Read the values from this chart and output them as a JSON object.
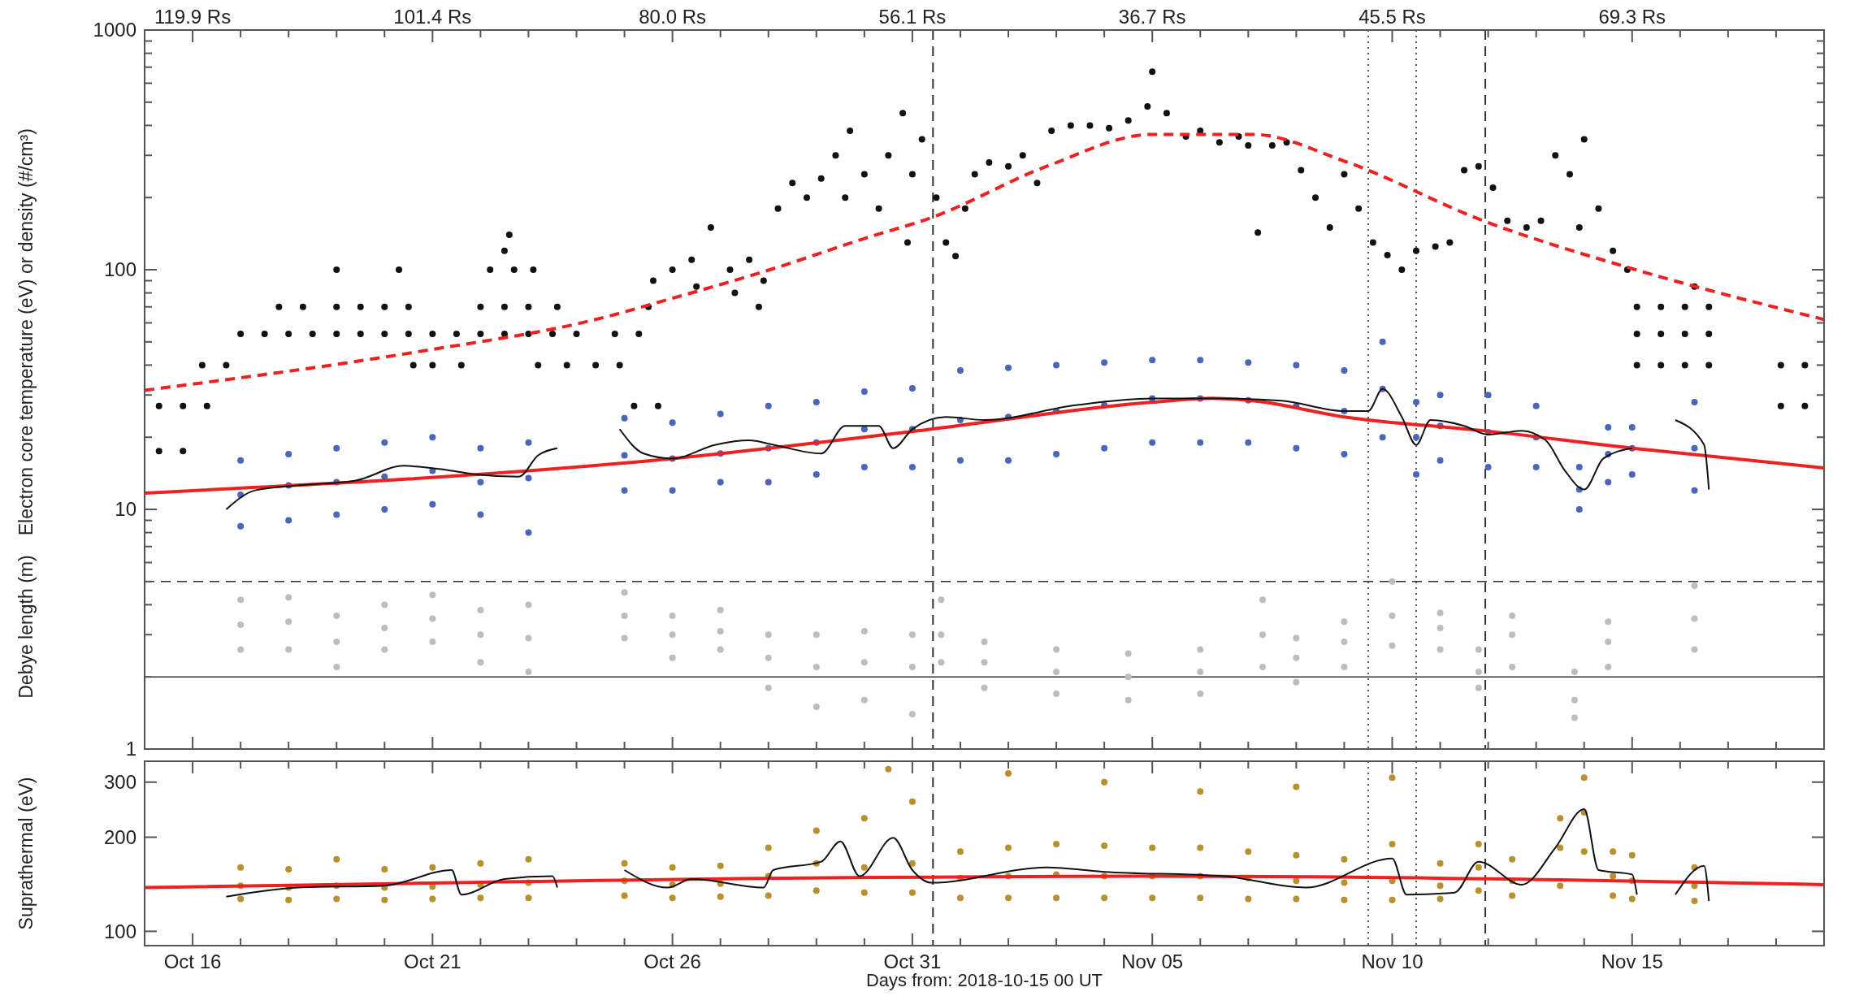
{
  "chart_data": [
    {
      "type": "scatter",
      "ylabel": "Electron core temperature (eV) or density (#/cm³)",
      "log": "y",
      "marker": "circle",
      "tick_labels": "y",
      "annotations": [
        "Debye length (m)",
        "119.9 Rs",
        "101.4 Rs",
        "80.0 Rs",
        "56.1 Rs",
        "36.7 Rs",
        "45.5 Rs",
        "69.3 Rs"
      ],
      "xlim": [
        "2018-10-15",
        "2018-11-19"
      ],
      "ylim": [
        1,
        1000
      ],
      "xticks": [
        {
          "value": "2018-10-16",
          "label": null
        },
        {
          "value": "2018-10-17",
          "label": null
        },
        {
          "value": "2018-10-18",
          "label": null
        },
        {
          "value": "2018-10-19",
          "label": null
        },
        {
          "value": "2018-10-20",
          "label": null
        },
        {
          "value": "2018-10-21",
          "label": null
        },
        {
          "value": "2018-10-22",
          "label": null
        },
        {
          "value": "2018-10-23",
          "label": null
        },
        {
          "value": "2018-10-24",
          "label": null
        },
        {
          "value": "2018-10-25",
          "label": null
        },
        {
          "value": "2018-10-26",
          "label": null
        },
        {
          "value": "2018-10-27",
          "label": null
        },
        {
          "value": "2018-10-28",
          "label": null
        },
        {
          "value": "2018-10-29",
          "label": null
        },
        {
          "value": "2018-10-30",
          "label": null
        },
        {
          "value": "2018-10-31",
          "label": null
        },
        {
          "value": "2018-11-01",
          "label": null
        },
        {
          "value": "2018-11-02",
          "label": null
        },
        {
          "value": "2018-11-03",
          "label": null
        },
        {
          "value": "2018-11-04",
          "label": null
        },
        {
          "value": "2018-11-05",
          "label": null
        },
        {
          "value": "2018-11-06",
          "label": null
        },
        {
          "value": "2018-11-07",
          "label": null
        },
        {
          "value": "2018-11-08",
          "label": null
        },
        {
          "value": "2018-11-09",
          "label": null
        },
        {
          "value": "2018-11-10",
          "label": null
        },
        {
          "value": "2018-11-11",
          "label": null
        },
        {
          "value": "2018-11-12",
          "label": null
        },
        {
          "value": "2018-11-13",
          "label": null
        },
        {
          "value": "2018-11-14",
          "label": null
        },
        {
          "value": "2018-11-15",
          "label": null
        },
        {
          "value": "2018-11-16",
          "label": null
        },
        {
          "value": "2018-11-17",
          "label": null
        },
        {
          "value": "2018-11-18",
          "label": null
        }
      ],
      "yticks": [
        1,
        {
          "value": 2,
          "label": null
        },
        {
          "value": 3,
          "label": null
        },
        {
          "value": 4,
          "label": null
        },
        {
          "value": 5,
          "label": null
        },
        {
          "value": 6,
          "label": null
        },
        {
          "value": 7,
          "label": null
        },
        {
          "value": 8,
          "label": null
        },
        {
          "value": 9,
          "label": null
        },
        10,
        {
          "value": 20,
          "label": null
        },
        {
          "value": 30,
          "label": null
        },
        {
          "value": 40,
          "label": null
        },
        {
          "value": 50,
          "label": null
        },
        {
          "value": 60,
          "label": null
        },
        {
          "value": 70,
          "label": null
        },
        {
          "value": 80,
          "label": null
        },
        {
          "value": 90,
          "label": null
        },
        100,
        {
          "value": 200,
          "label": null
        },
        {
          "value": 300,
          "label": null
        },
        {
          "value": 400,
          "label": null
        },
        {
          "value": 500,
          "label": null
        },
        {
          "value": 600,
          "label": null
        },
        {
          "value": 700,
          "label": null
        },
        {
          "value": 800,
          "label": null
        },
        {
          "value": 900,
          "label": null
        },
        1000
      ],
      "ref_lines": [
        {
          "axis": "y",
          "value": 5,
          "color": "#333333",
          "line_style": "dashed"
        },
        {
          "axis": "y",
          "value": 2,
          "color": "#333333",
          "line_style": "solid"
        },
        {
          "axis": "x",
          "value": "2018-10-31T10:19",
          "color": "#333333",
          "line_style": "dashed"
        },
        {
          "axis": "x",
          "value": "2018-11-11T22:34",
          "color": "#333333",
          "line_style": "dashed"
        },
        {
          "axis": "x",
          "value": "2018-11-09T12:00",
          "color": "#555555",
          "line_style": "dotted"
        },
        {
          "axis": "x",
          "value": "2018-11-10T12:00",
          "color": "#555555",
          "line_style": "dotted"
        }
      ],
      "series": [
        {
          "color": "#bdbdbd",
          "x": [
            "2018-10-17",
            "2018-10-17",
            "2018-10-17",
            "2018-10-18",
            "2018-10-18",
            "2018-10-18",
            "2018-10-19",
            "2018-10-19",
            "2018-10-19",
            "2018-10-20",
            "2018-10-20",
            "2018-10-20",
            "2018-10-21",
            "2018-10-21",
            "2018-10-21",
            "2018-10-22",
            "2018-10-22",
            "2018-10-22",
            "2018-10-23",
            "2018-10-23",
            "2018-10-23",
            "2018-10-25",
            "2018-10-25",
            "2018-10-25",
            "2018-10-26",
            "2018-10-26",
            "2018-10-26",
            "2018-10-27",
            "2018-10-27",
            "2018-10-27",
            "2018-10-28",
            "2018-10-28",
            "2018-10-28",
            "2018-10-29",
            "2018-10-29",
            "2018-10-29",
            "2018-10-30",
            "2018-10-30",
            "2018-10-30",
            "2018-10-31",
            "2018-10-31",
            "2018-10-31",
            "2018-10-31T14:24",
            "2018-10-31T14:24",
            "2018-10-31T14:24",
            "2018-11-01T12:00",
            "2018-11-01T12:00",
            "2018-11-01T12:00",
            "2018-11-03",
            "2018-11-03",
            "2018-11-03",
            "2018-11-04T12:00",
            "2018-11-04T12:00",
            "2018-11-04T12:00",
            "2018-11-06",
            "2018-11-06",
            "2018-11-06",
            "2018-11-07T07:12",
            "2018-11-07T07:12",
            "2018-11-07T07:12",
            "2018-11-08",
            "2018-11-08",
            "2018-11-08",
            "2018-11-09",
            "2018-11-09",
            "2018-11-09",
            "2018-11-10",
            "2018-11-10",
            "2018-11-10",
            "2018-11-11",
            "2018-11-11",
            "2018-11-11",
            "2018-11-11T19:12",
            "2018-11-11T19:12",
            "2018-11-11T19:12",
            "2018-11-12T12:00",
            "2018-11-12T12:00",
            "2018-11-12T12:00",
            "2018-11-13T19:12",
            "2018-11-13T19:12",
            "2018-11-13T19:12",
            "2018-11-14T12:00",
            "2018-11-14T12:00",
            "2018-11-14T12:00",
            "2018-11-16T07:12",
            "2018-11-16T07:12",
            "2018-11-16T07:12"
          ],
          "values": [
            3.3,
            4.2,
            2.6,
            3.4,
            4.3,
            2.6,
            2.8,
            3.6,
            2.2,
            3.2,
            4.0,
            2.6,
            3.5,
            4.4,
            2.8,
            3.0,
            3.8,
            2.3,
            2.9,
            4.0,
            2.1,
            3.6,
            4.5,
            2.9,
            3.0,
            3.6,
            2.4,
            3.1,
            3.8,
            2.6,
            2.4,
            3.0,
            1.8,
            2.2,
            3.0,
            1.5,
            2.3,
            3.1,
            1.6,
            2.2,
            3.0,
            1.4,
            3.0,
            4.2,
            2.3,
            2.3,
            2.8,
            1.8,
            2.1,
            2.6,
            1.7,
            2.0,
            2.5,
            1.6,
            2.1,
            2.6,
            1.7,
            3.0,
            4.2,
            2.2,
            2.4,
            2.9,
            1.9,
            2.8,
            3.4,
            2.2,
            3.6,
            5.0,
            2.7,
            3.2,
            3.7,
            2.6,
            2.1,
            2.6,
            1.8,
            3.0,
            3.6,
            2.2,
            1.6,
            2.1,
            1.35,
            2.8,
            3.4,
            2.2,
            3.5,
            4.8,
            2.6
          ]
        },
        {
          "color": "#4a66b8",
          "x": [
            "2018-10-17",
            "2018-10-17",
            "2018-10-17",
            "2018-10-18",
            "2018-10-18",
            "2018-10-18",
            "2018-10-19",
            "2018-10-19",
            "2018-10-19",
            "2018-10-20",
            "2018-10-20",
            "2018-10-20",
            "2018-10-21",
            "2018-10-21",
            "2018-10-21",
            "2018-10-22",
            "2018-10-22",
            "2018-10-22",
            "2018-10-23",
            "2018-10-23",
            "2018-10-23",
            "2018-10-25",
            "2018-10-25",
            "2018-10-25",
            "2018-10-26",
            "2018-10-26",
            "2018-10-26",
            "2018-10-27",
            "2018-10-27",
            "2018-10-27",
            "2018-10-28",
            "2018-10-28",
            "2018-10-28",
            "2018-10-29",
            "2018-10-29",
            "2018-10-29",
            "2018-10-30",
            "2018-10-30",
            "2018-10-30",
            "2018-10-31",
            "2018-10-31",
            "2018-10-31",
            "2018-11-01",
            "2018-11-01",
            "2018-11-01",
            "2018-11-02",
            "2018-11-02",
            "2018-11-02",
            "2018-11-03",
            "2018-11-03",
            "2018-11-03",
            "2018-11-04",
            "2018-11-04",
            "2018-11-04",
            "2018-11-05",
            "2018-11-05",
            "2018-11-05",
            "2018-11-06",
            "2018-11-06",
            "2018-11-06",
            "2018-11-07",
            "2018-11-07",
            "2018-11-07",
            "2018-11-08",
            "2018-11-08",
            "2018-11-08",
            "2018-11-09",
            "2018-11-09",
            "2018-11-09",
            "2018-11-09T19:12",
            "2018-11-09T19:12",
            "2018-11-09T19:12",
            "2018-11-10T12:00",
            "2018-11-10T12:00",
            "2018-11-10T12:00",
            "2018-11-11",
            "2018-11-11",
            "2018-11-11",
            "2018-11-12",
            "2018-11-12",
            "2018-11-12",
            "2018-11-13",
            "2018-11-13",
            "2018-11-13",
            "2018-11-13T21:36",
            "2018-11-13T21:36",
            "2018-11-13T21:36",
            "2018-11-14T12:00",
            "2018-11-14T12:00",
            "2018-11-14T12:00",
            "2018-11-15",
            "2018-11-15",
            "2018-11-15",
            "2018-11-16T07:12",
            "2018-11-16T07:12",
            "2018-11-16T07:12"
          ],
          "values": [
            11.5,
            16,
            8.5,
            12.6,
            17,
            9,
            13,
            18,
            9.5,
            13.7,
            19,
            10,
            14.5,
            20,
            10.5,
            13,
            18,
            9.5,
            13.5,
            19,
            8,
            16.8,
            24,
            12,
            16.3,
            23,
            12,
            17.1,
            25,
            13,
            18,
            27,
            13,
            19,
            28,
            14,
            21.6,
            31,
            15,
            21.6,
            32,
            15,
            23.6,
            38,
            16,
            24.3,
            39,
            16,
            25.7,
            40,
            17,
            27.2,
            41,
            18,
            29,
            42,
            19,
            29,
            42,
            19,
            28.5,
            41,
            19,
            27,
            40,
            18,
            25.7,
            38,
            17,
            31.8,
            50,
            20,
            20,
            28,
            14,
            22.3,
            30,
            16,
            21,
            30,
            15,
            20,
            27,
            15,
            12.1,
            15,
            10,
            17,
            22,
            13,
            18,
            22,
            14,
            18,
            28,
            12
          ]
        },
        {
          "color": "#111111",
          "x": [
            "2018-10-15T07:12",
            "2018-10-15T19:12",
            "2018-10-16T07:12",
            "2018-10-15T07:12",
            "2018-10-15T19:12",
            "2018-10-16T04:48",
            "2018-10-16T16:48",
            "2018-10-17",
            "2018-10-17T12:00",
            "2018-10-18",
            "2018-10-18T12:00",
            "2018-10-19",
            "2018-10-19T12:00",
            "2018-10-20",
            "2018-10-20T12:00",
            "2018-10-21",
            "2018-10-21T12:00",
            "2018-10-22",
            "2018-10-22T12:00",
            "2018-10-23",
            "2018-10-23T12:00",
            "2018-10-24",
            "2018-10-17T19:12",
            "2018-10-18T07:12",
            "2018-10-19",
            "2018-10-19T12:00",
            "2018-10-20",
            "2018-10-20T12:00",
            "2018-10-22",
            "2018-10-22T12:00",
            "2018-10-23",
            "2018-10-23T14:24",
            "2018-10-19",
            "2018-10-20T07:12",
            "2018-10-22T04:48",
            "2018-10-22T16:48",
            "2018-10-23T02:24",
            "2018-10-22T14:24",
            "2018-10-22T12:00",
            "2018-10-20T14:24",
            "2018-10-21",
            "2018-10-21T14:24",
            "2018-10-23T04:48",
            "2018-10-23T19:12",
            "2018-10-24T09:36",
            "2018-10-24T21:36",
            "2018-10-25T04:48",
            "2018-10-25T16:48",
            "2018-10-24T19:12",
            "2018-10-25T07:12",
            "2018-10-25T12:00",
            "2018-10-25T14:24",
            "2018-10-26",
            "2018-10-26T09:36",
            "2018-10-26T19:12",
            "2018-10-27T04:48",
            "2018-10-27T14:24",
            "2018-10-27T21:36",
            "2018-10-26T12:00",
            "2018-10-27T07:12",
            "2018-10-27T19:12",
            "2018-10-28T04:48",
            "2018-10-28T12:00",
            "2018-10-28T19:12",
            "2018-10-29T02:24",
            "2018-10-29T09:36",
            "2018-10-29T16:48",
            "2018-10-29T14:24",
            "2018-10-30",
            "2018-10-30T07:12",
            "2018-10-30T12:00",
            "2018-10-30T19:12",
            "2018-10-31",
            "2018-10-31T04:48",
            "2018-10-30T21:36",
            "2018-10-31T12:00",
            "2018-10-31T16:48",
            "2018-10-31T21:36",
            "2018-11-01T02:24",
            "2018-11-01T07:12",
            "2018-11-01T14:24",
            "2018-11-02",
            "2018-11-02T07:12",
            "2018-11-02T14:24",
            "2018-11-02T21:36",
            "2018-11-03T07:12",
            "2018-11-03T16:48",
            "2018-11-04T02:24",
            "2018-11-04T12:00",
            "2018-11-04T21:36",
            "2018-11-05",
            "2018-11-05T07:12",
            "2018-11-05T16:48",
            "2018-11-06",
            "2018-11-06T09:36",
            "2018-11-06T19:12",
            "2018-11-07",
            "2018-11-07T04:48",
            "2018-11-07T12:00",
            "2018-11-07T19:12",
            "2018-11-08T02:24",
            "2018-11-08T09:36",
            "2018-11-08T16:48",
            "2018-11-09",
            "2018-11-09T07:12",
            "2018-11-09T14:24",
            "2018-11-09T21:36",
            "2018-11-10T04:48",
            "2018-11-10T12:00",
            "2018-11-10T21:36",
            "2018-11-11T04:48",
            "2018-11-11T12:00",
            "2018-11-11T19:12",
            "2018-11-12T02:24",
            "2018-11-12T09:36",
            "2018-11-12T19:12",
            "2018-11-13T02:24",
            "2018-11-13T09:36",
            "2018-11-13T16:48",
            "2018-11-14",
            "2018-11-13T21:36",
            "2018-11-14T07:12",
            "2018-11-14T14:24",
            "2018-11-14T21:36",
            "2018-11-15T02:24",
            "2018-11-15T14:24",
            "2018-11-16T02:24",
            "2018-11-16T14:24",
            "2018-11-15T02:24",
            "2018-11-15T14:24",
            "2018-11-16T02:24",
            "2018-11-16T14:24",
            "2018-11-15T02:24",
            "2018-11-15T14:24",
            "2018-11-16T02:24",
            "2018-11-16T14:24",
            "2018-11-16T07:12",
            "2018-11-18T02:24",
            "2018-11-18T14:24",
            "2018-11-18T02:24",
            "2018-11-18T14:24"
          ],
          "values": [
            27,
            27,
            27,
            17.5,
            17.5,
            40,
            40,
            54,
            54,
            54,
            54,
            54,
            54,
            54,
            54,
            54,
            54,
            54,
            54,
            54,
            54,
            54,
            70,
            70,
            70,
            70,
            70,
            70,
            70,
            70,
            70,
            70,
            100,
            100,
            100,
            100,
            100,
            140,
            120,
            40,
            40,
            40,
            40,
            40,
            40,
            40,
            27,
            27,
            54,
            54,
            70,
            90,
            100,
            110,
            150,
            100,
            110,
            90,
            85,
            80,
            70,
            180,
            230,
            200,
            240,
            300,
            380,
            200,
            250,
            180,
            300,
            450,
            250,
            350,
            130,
            200,
            130,
            114,
            180,
            250,
            280,
            270,
            300,
            230,
            380,
            400,
            400,
            390,
            420,
            480,
            670,
            450,
            360,
            380,
            340,
            360,
            330,
            143,
            330,
            340,
            260,
            200,
            150,
            250,
            180,
            130,
            115,
            100,
            120,
            125,
            130,
            260,
            270,
            220,
            160,
            150,
            160,
            300,
            250,
            350,
            150,
            180,
            120,
            100,
            70,
            70,
            70,
            70,
            54,
            54,
            54,
            54,
            40,
            40,
            40,
            40,
            85,
            40,
            40,
            27,
            27
          ]
        },
        {
          "type": "line",
          "color": "#ee2020",
          "line_style": "dashed",
          "marker": "none",
          "x": [
            "2018-10-15",
            "2018-10-20T16:48",
            "2018-10-24T09:36",
            "2018-10-26",
            "2018-10-28T02:24",
            "2018-10-30",
            "2018-10-31T09:36",
            "2018-11-02T19:12",
            "2018-11-05",
            "2018-11-07T02:24",
            "2018-11-09",
            "2018-11-11T21:36",
            "2018-11-15",
            "2018-11-19"
          ],
          "values": [
            31.4,
            45.5,
            62,
            76,
            101,
            135,
            165,
            270,
            367,
            367,
            284,
            160,
            101,
            62
          ]
        },
        {
          "type": "line",
          "color": "#ee2020",
          "line_style": "solid",
          "marker": "none",
          "x": [
            "2018-10-15",
            "2018-10-26",
            "2018-10-31T07:12",
            "2018-11-05",
            "2018-11-06T06:00",
            "2018-11-07T02:24",
            "2018-11-09",
            "2018-11-11T21:36",
            "2018-11-15",
            "2018-11-19"
          ],
          "values": [
            11.7,
            16.3,
            21.5,
            28,
            29.1,
            28.4,
            24.3,
            21.3,
            18,
            14.9
          ]
        },
        {
          "type": "line",
          "color": "#111111",
          "line_style": "solid",
          "marker": "none",
          "x": [
            "2018-10-16T16:48",
            "2018-10-17T07:12",
            "2018-10-18T04:48",
            "2018-10-19T09:36",
            "2018-10-20T09:36",
            "2018-10-20T19:12",
            "2018-10-21T09:36",
            "2018-10-21T21:36",
            "2018-10-22T19:12",
            "2018-10-23T04:48",
            "2018-10-23T14:24",
            "2018-10-24T04:48",
            "2018-10-24T21:36",
            "2018-10-25T09:36",
            "2018-10-26",
            "2018-10-26T21:36",
            "2018-10-27T14:24",
            "2018-10-28T02:24",
            "2018-10-29T02:24",
            "2018-10-29T14:24",
            "2018-10-30T07:12",
            "2018-10-30T14:24",
            "2018-10-31",
            "2018-10-31T16:48",
            "2018-11-01T12:00",
            "2018-11-03T09:36",
            "2018-11-05",
            "2018-11-06T12:00",
            "2018-11-07T16:48",
            "2018-11-09",
            "2018-11-09T12:00",
            "2018-11-09T19:12",
            "2018-11-10T04:48",
            "2018-11-10T12:00",
            "2018-11-10T19:12",
            "2018-11-11T12:00",
            "2018-11-12",
            "2018-11-12T16:48",
            "2018-11-13T04:48",
            "2018-11-13T14:24",
            "2018-11-14",
            "2018-11-14T09:36",
            "2018-11-15",
            "2018-11-15T12:00",
            "2018-11-15T21:36",
            "2018-11-16T12:00",
            "2018-11-16T14:24"
          ],
          "values": [
            10,
            12,
            12.6,
            13.2,
            15.2,
            15,
            14.5,
            14,
            13.7,
            16.8,
            18,
            null,
            21.6,
            17.1,
            16.3,
            18.6,
            19.4,
            18.6,
            17.1,
            22.3,
            22.3,
            18,
            21.6,
            24.3,
            23.6,
            27.2,
            29,
            29,
            28.4,
            25.7,
            25.7,
            31.8,
            24.3,
            18.6,
            23.6,
            22.3,
            20.5,
            21.3,
            19.4,
            14.5,
            12.1,
            16.3,
            18,
            null,
            23.6,
            18.6,
            12.1
          ]
        }
      ]
    },
    {
      "type": "scatter",
      "ylabel": "Suprathermal (eV)",
      "xlabel": "Days from: 2018-10-15 00 UT",
      "log": "y",
      "marker": "circle",
      "xlim": [
        "2018-10-15",
        "2018-11-19"
      ],
      "ylim": [
        90,
        350
      ],
      "xticks": [
        {
          "value": "2018-10-16",
          "label": "Oct 16"
        },
        {
          "value": "2018-10-17",
          "label": null
        },
        {
          "value": "2018-10-18",
          "label": null
        },
        {
          "value": "2018-10-19",
          "label": null
        },
        {
          "value": "2018-10-20",
          "label": null
        },
        {
          "value": "2018-10-21",
          "label": "Oct 21"
        },
        {
          "value": "2018-10-22",
          "label": null
        },
        {
          "value": "2018-10-23",
          "label": null
        },
        {
          "value": "2018-10-24",
          "label": null
        },
        {
          "value": "2018-10-25",
          "label": null
        },
        {
          "value": "2018-10-26",
          "label": "Oct 26"
        },
        {
          "value": "2018-10-27",
          "label": null
        },
        {
          "value": "2018-10-28",
          "label": null
        },
        {
          "value": "2018-10-29",
          "label": null
        },
        {
          "value": "2018-10-30",
          "label": null
        },
        {
          "value": "2018-10-31",
          "label": "Oct 31"
        },
        {
          "value": "2018-11-01",
          "label": null
        },
        {
          "value": "2018-11-02",
          "label": null
        },
        {
          "value": "2018-11-03",
          "label": null
        },
        {
          "value": "2018-11-04",
          "label": null
        },
        {
          "value": "2018-11-05",
          "label": "Nov 05"
        },
        {
          "value": "2018-11-06",
          "label": null
        },
        {
          "value": "2018-11-07",
          "label": null
        },
        {
          "value": "2018-11-08",
          "label": null
        },
        {
          "value": "2018-11-09",
          "label": null
        },
        {
          "value": "2018-11-10",
          "label": "Nov 10"
        },
        {
          "value": "2018-11-11",
          "label": null
        },
        {
          "value": "2018-11-12",
          "label": null
        },
        {
          "value": "2018-11-13",
          "label": null
        },
        {
          "value": "2018-11-14",
          "label": null
        },
        {
          "value": "2018-11-15",
          "label": "Nov 15"
        },
        {
          "value": "2018-11-16",
          "label": null
        },
        {
          "value": "2018-11-17",
          "label": null
        },
        {
          "value": "2018-11-18",
          "label": null
        }
      ],
      "yticks": [
        100,
        200,
        300
      ],
      "ref_lines": [
        {
          "axis": "x",
          "value": "2018-10-31T10:19",
          "color": "#333333",
          "line_style": "dashed"
        },
        {
          "axis": "x",
          "value": "2018-11-11T22:34",
          "color": "#333333",
          "line_style": "dashed"
        },
        {
          "axis": "x",
          "value": "2018-11-09T12:00",
          "color": "#555555",
          "line_style": "dotted"
        },
        {
          "axis": "x",
          "value": "2018-11-10T12:00",
          "color": "#555555",
          "line_style": "dotted"
        }
      ],
      "series": [
        {
          "color": "#b8902e",
          "x": [
            "2018-10-17",
            "2018-10-17",
            "2018-10-17",
            "2018-10-18",
            "2018-10-18",
            "2018-10-18",
            "2018-10-19",
            "2018-10-19",
            "2018-10-19",
            "2018-10-20",
            "2018-10-20",
            "2018-10-20",
            "2018-10-21",
            "2018-10-21",
            "2018-10-21",
            "2018-10-22",
            "2018-10-22",
            "2018-10-22",
            "2018-10-23",
            "2018-10-23",
            "2018-10-23",
            "2018-10-25",
            "2018-10-25",
            "2018-10-25",
            "2018-10-26",
            "2018-10-26",
            "2018-10-26",
            "2018-10-27",
            "2018-10-27",
            "2018-10-27",
            "2018-10-28",
            "2018-10-28",
            "2018-10-28",
            "2018-10-29",
            "2018-10-29",
            "2018-10-29",
            "2018-10-30",
            "2018-10-30",
            "2018-10-30",
            "2018-10-31",
            "2018-10-31",
            "2018-10-31",
            "2018-11-01",
            "2018-11-01",
            "2018-11-01",
            "2018-11-02",
            "2018-11-02",
            "2018-11-02",
            "2018-11-03",
            "2018-11-03",
            "2018-11-03",
            "2018-11-04",
            "2018-11-04",
            "2018-11-04",
            "2018-11-05",
            "2018-11-05",
            "2018-11-05",
            "2018-11-06",
            "2018-11-06",
            "2018-11-06",
            "2018-11-07",
            "2018-11-07",
            "2018-11-07",
            "2018-11-08",
            "2018-11-08",
            "2018-11-08",
            "2018-11-09",
            "2018-11-09",
            "2018-11-09",
            "2018-11-10",
            "2018-11-10",
            "2018-11-10",
            "2018-11-11",
            "2018-11-11",
            "2018-11-11",
            "2018-11-11T19:12",
            "2018-11-11T19:12",
            "2018-11-11T19:12",
            "2018-11-12T12:00",
            "2018-11-12T12:00",
            "2018-11-12T12:00",
            "2018-11-13T12:00",
            "2018-11-13T12:00",
            "2018-11-13T12:00",
            "2018-11-14",
            "2018-11-14",
            "2018-11-14",
            "2018-11-14T14:24",
            "2018-11-14T14:24",
            "2018-11-14T14:24",
            "2018-11-15",
            "2018-11-15",
            "2018-11-15",
            "2018-11-16T07:12",
            "2018-11-16T07:12",
            "2018-11-16T07:12",
            "2018-10-30T12:00",
            "2018-11-02",
            "2018-11-04",
            "2018-11-06",
            "2018-11-08",
            "2018-11-10"
          ],
          "values": [
            140,
            160,
            127,
            138,
            158,
            126,
            140,
            170,
            127,
            138,
            158,
            126,
            139,
            160,
            127,
            141,
            165,
            128,
            143,
            170,
            128,
            145,
            165,
            130,
            141,
            160,
            128,
            142,
            162,
            129,
            150,
            185,
            130,
            165,
            210,
            135,
            160,
            230,
            133,
            165,
            260,
            133,
            148,
            180,
            128,
            150,
            185,
            128,
            152,
            190,
            128,
            150,
            188,
            128,
            150,
            185,
            128,
            150,
            185,
            128,
            148,
            180,
            127,
            145,
            175,
            127,
            143,
            170,
            126,
            145,
            190,
            126,
            140,
            165,
            127,
            160,
            190,
            135,
            145,
            170,
            130,
            185,
            230,
            140,
            240,
            310,
            180,
            150,
            180,
            130,
            145,
            175,
            127,
            140,
            160,
            125,
            330,
            320,
            300,
            280,
            290,
            310
          ]
        },
        {
          "type": "line",
          "color": "#ee2020",
          "line_style": "solid",
          "marker": "none",
          "x": [
            "2018-10-15",
            "2018-11-05",
            "2018-11-19"
          ],
          "values": [
            138,
            150,
            141
          ]
        },
        {
          "type": "line",
          "color": "#111111",
          "line_style": "solid",
          "marker": "none",
          "x": [
            "2018-10-16T16:48",
            "2018-10-18T04:48",
            "2018-10-20",
            "2018-10-21T09:36",
            "2018-10-21T14:24",
            "2018-10-22T12:00",
            "2018-10-23T12:00",
            "2018-10-23T14:24",
            "2018-10-24T04:48",
            "2018-10-25",
            "2018-10-25T21:36",
            "2018-10-26T09:36",
            "2018-10-27T21:36",
            "2018-10-28T02:24",
            "2018-10-29T02:24",
            "2018-10-29T12:00",
            "2018-10-29T21:36",
            "2018-10-30T14:24",
            "2018-10-31",
            "2018-10-31T09:36",
            "2018-11-02T19:12",
            "2018-11-04",
            "2018-11-06T12:00",
            "2018-11-08T04:48",
            "2018-11-10",
            "2018-11-10T07:12",
            "2018-11-11T07:12",
            "2018-11-11T19:12",
            "2018-11-12T16:48",
            "2018-11-13T09:36",
            "2018-11-14",
            "2018-11-14T07:12",
            "2018-11-15",
            "2018-11-15T02:24",
            "2018-11-15T12:00",
            "2018-11-15T21:36",
            "2018-11-16T12:00",
            "2018-11-16T14:24"
          ],
          "values": [
            129,
            138,
            140,
            157,
            131,
            147,
            150,
            138,
            null,
            157,
            138,
            147,
            138,
            157,
            167,
            194,
            150,
            199,
            157,
            143,
            160,
            155,
            150,
            138,
            171,
            131,
            133,
            167,
            141,
            185,
            246,
            157,
            152,
            131,
            null,
            131,
            162,
            125
          ]
        }
      ]
    }
  ]
}
